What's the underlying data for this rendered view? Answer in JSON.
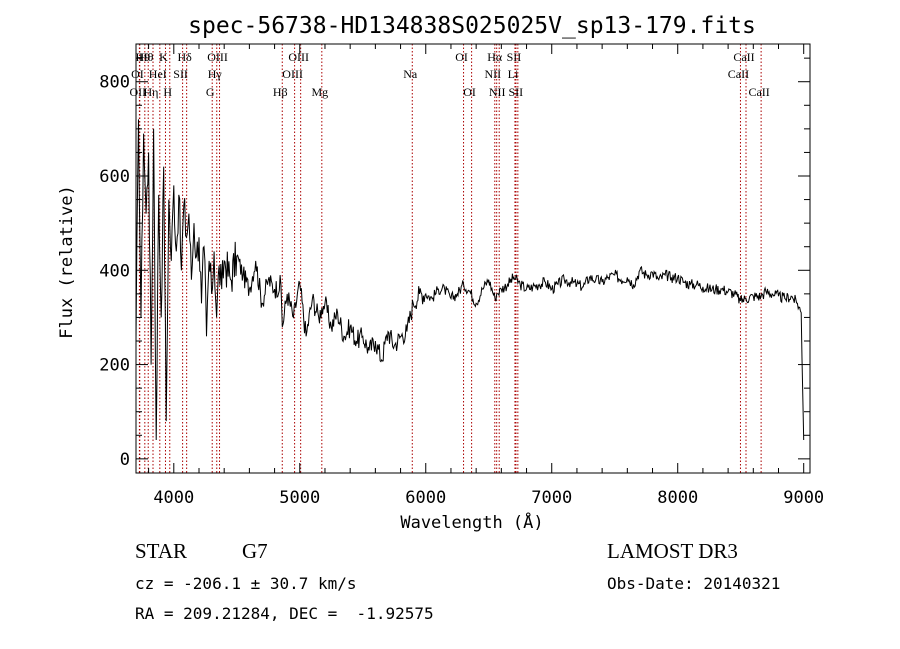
{
  "chart_data": {
    "type": "line",
    "title": "spec-56738-HD134838S025025V_sp13-179.fits",
    "xlabel": "Wavelength (Å)",
    "ylabel": "Flux (relative)",
    "xlim": [
      3700,
      9050
    ],
    "ylim": [
      -30,
      880
    ],
    "xticks": [
      4000,
      5000,
      6000,
      7000,
      8000,
      9000
    ],
    "yticks": [
      0,
      200,
      400,
      600,
      800
    ],
    "grid": false,
    "series": [
      {
        "name": "flux",
        "x": [
          3700,
          3720,
          3740,
          3760,
          3780,
          3800,
          3820,
          3840,
          3860,
          3880,
          3900,
          3920,
          3940,
          3960,
          3980,
          4000,
          4020,
          4040,
          4060,
          4080,
          4100,
          4120,
          4140,
          4160,
          4180,
          4200,
          4220,
          4240,
          4260,
          4280,
          4300,
          4320,
          4340,
          4360,
          4380,
          4400,
          4450,
          4500,
          4550,
          4600,
          4650,
          4700,
          4750,
          4800,
          4850,
          4861,
          4900,
          4950,
          5000,
          5050,
          5100,
          5150,
          5175,
          5200,
          5250,
          5300,
          5350,
          5400,
          5450,
          5500,
          5550,
          5600,
          5650,
          5700,
          5750,
          5800,
          5850,
          5900,
          5950,
          6000,
          6050,
          6100,
          6150,
          6200,
          6250,
          6300,
          6350,
          6400,
          6450,
          6500,
          6550,
          6563,
          6600,
          6650,
          6700,
          6750,
          6800,
          6850,
          6900,
          6950,
          7000,
          7050,
          7100,
          7150,
          7200,
          7250,
          7300,
          7350,
          7400,
          7450,
          7500,
          7550,
          7600,
          7650,
          7700,
          7750,
          7800,
          7850,
          7900,
          7950,
          8000,
          8050,
          8100,
          8150,
          8200,
          8250,
          8300,
          8350,
          8400,
          8450,
          8498,
          8542,
          8600,
          8662,
          8700,
          8750,
          8800,
          8850,
          8900,
          8950,
          8980,
          9000
        ],
        "y": [
          250,
          720,
          300,
          690,
          520,
          650,
          200,
          700,
          40,
          560,
          300,
          620,
          80,
          550,
          420,
          580,
          440,
          560,
          400,
          540,
          470,
          520,
          380,
          500,
          430,
          470,
          330,
          450,
          260,
          420,
          350,
          440,
          300,
          410,
          360,
          420,
          380,
          430,
          390,
          360,
          420,
          330,
          380,
          360,
          370,
          280,
          350,
          300,
          370,
          260,
          340,
          300,
          320,
          330,
          280,
          310,
          260,
          280,
          250,
          260,
          230,
          250,
          210,
          270,
          240,
          260,
          270,
          330,
          350,
          350,
          340,
          360,
          360,
          340,
          350,
          370,
          355,
          330,
          360,
          380,
          340,
          350,
          360,
          370,
          385,
          370,
          360,
          365,
          370,
          375,
          360,
          370,
          380,
          375,
          370,
          365,
          385,
          380,
          375,
          385,
          390,
          380,
          385,
          370,
          400,
          390,
          395,
          380,
          390,
          385,
          385,
          375,
          370,
          370,
          365,
          360,
          360,
          360,
          355,
          350,
          335,
          340,
          345,
          345,
          355,
          350,
          345,
          340,
          345,
          330,
          310,
          40
        ]
      }
    ],
    "line_markers": [
      {
        "label": "OI",
        "wavelength": 3727,
        "row": 2
      },
      {
        "label": "H9",
        "wavelength": 3770,
        "row": 1
      },
      {
        "label": "OII",
        "wavelength": 3730,
        "row": 3
      },
      {
        "label": "Hθ",
        "wavelength": 3797,
        "row": 1
      },
      {
        "label": "Hη",
        "wavelength": 3835,
        "row": 3
      },
      {
        "label": "HeI",
        "wavelength": 3889,
        "row": 2
      },
      {
        "label": "K",
        "wavelength": 3934,
        "row": 1
      },
      {
        "label": "H",
        "wavelength": 3968,
        "row": 3
      },
      {
        "label": "SII",
        "wavelength": 4070,
        "row": 2
      },
      {
        "label": "Hδ",
        "wavelength": 4102,
        "row": 1
      },
      {
        "label": "OIII",
        "wavelength": 4363,
        "row": 1
      },
      {
        "label": "Hγ",
        "wavelength": 4341,
        "row": 2
      },
      {
        "label": "G",
        "wavelength": 4305,
        "row": 3
      },
      {
        "label": "Hβ",
        "wavelength": 4861,
        "row": 3
      },
      {
        "label": "OIII",
        "wavelength": 4959,
        "row": 2
      },
      {
        "label": "OIII",
        "wavelength": 5007,
        "row": 1
      },
      {
        "label": "Mg",
        "wavelength": 5175,
        "row": 3
      },
      {
        "label": "Na",
        "wavelength": 5893,
        "row": 2
      },
      {
        "label": "OI",
        "wavelength": 6300,
        "row": 1
      },
      {
        "label": "OI",
        "wavelength": 6364,
        "row": 3
      },
      {
        "label": "Hα",
        "wavelength": 6563,
        "row": 1
      },
      {
        "label": "NII",
        "wavelength": 6548,
        "row": 2
      },
      {
        "label": "NII",
        "wavelength": 6583,
        "row": 3
      },
      {
        "label": "SII",
        "wavelength": 6716,
        "row": 1
      },
      {
        "label": "Li",
        "wavelength": 6708,
        "row": 2
      },
      {
        "label": "SII",
        "wavelength": 6731,
        "row": 3
      },
      {
        "label": "CaII",
        "wavelength": 8498,
        "row": 2
      },
      {
        "label": "CaII",
        "wavelength": 8542,
        "row": 1
      },
      {
        "label": "CaII",
        "wavelength": 8662,
        "row": 3
      }
    ]
  },
  "info": {
    "object_class": "STAR",
    "subclass": "G7",
    "survey": "LAMOST DR3",
    "cz": "cz = -206.1 ± 30.7 km/s",
    "obs_date": "Obs-Date: 20140321",
    "coords": "RA = 209.21284, DEC =  -1.92575"
  },
  "colors": {
    "line": "#000000",
    "marker": "#aa0000",
    "background": "#ffffff"
  }
}
